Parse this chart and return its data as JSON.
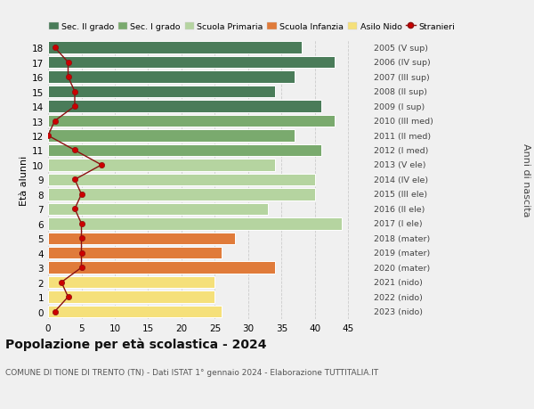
{
  "ages": [
    18,
    17,
    16,
    15,
    14,
    13,
    12,
    11,
    10,
    9,
    8,
    7,
    6,
    5,
    4,
    3,
    2,
    1,
    0
  ],
  "right_labels": [
    "2005 (V sup)",
    "2006 (IV sup)",
    "2007 (III sup)",
    "2008 (II sup)",
    "2009 (I sup)",
    "2010 (III med)",
    "2011 (II med)",
    "2012 (I med)",
    "2013 (V ele)",
    "2014 (IV ele)",
    "2015 (III ele)",
    "2016 (II ele)",
    "2017 (I ele)",
    "2018 (mater)",
    "2019 (mater)",
    "2020 (mater)",
    "2021 (nido)",
    "2022 (nido)",
    "2023 (nido)"
  ],
  "bar_values": [
    38,
    43,
    37,
    34,
    41,
    43,
    37,
    41,
    34,
    40,
    40,
    33,
    44,
    28,
    26,
    34,
    25,
    25,
    26
  ],
  "bar_colors": [
    "#4a7c59",
    "#4a7c59",
    "#4a7c59",
    "#4a7c59",
    "#4a7c59",
    "#7aaa6e",
    "#7aaa6e",
    "#7aaa6e",
    "#b5d4a0",
    "#b5d4a0",
    "#b5d4a0",
    "#b5d4a0",
    "#b5d4a0",
    "#e07b3a",
    "#e07b3a",
    "#e07b3a",
    "#f5e07a",
    "#f5e07a",
    "#f5e07a"
  ],
  "stranieri_values": [
    1,
    3,
    3,
    4,
    4,
    1,
    0,
    4,
    8,
    4,
    5,
    4,
    5,
    5,
    5,
    5,
    2,
    3,
    1
  ],
  "legend_labels": [
    "Sec. II grado",
    "Sec. I grado",
    "Scuola Primaria",
    "Scuola Infanzia",
    "Asilo Nido",
    "Stranieri"
  ],
  "legend_colors": [
    "#4a7c59",
    "#7aaa6e",
    "#b5d4a0",
    "#e07b3a",
    "#f5e07a",
    "#cc0000"
  ],
  "title": "Popolazione per età scolastica - 2024",
  "subtitle": "COMUNE DI TIONE DI TRENTO (TN) - Dati ISTAT 1° gennaio 2024 - Elaborazione TUTTITALIA.IT",
  "ylabel_left": "Età alunni",
  "ylabel_right": "Anni di nascita",
  "xlim": [
    0,
    48
  ],
  "xticks": [
    0,
    5,
    10,
    15,
    20,
    25,
    30,
    35,
    40,
    45
  ],
  "background_color": "#f0f0f0",
  "grid_color": "#cccccc"
}
